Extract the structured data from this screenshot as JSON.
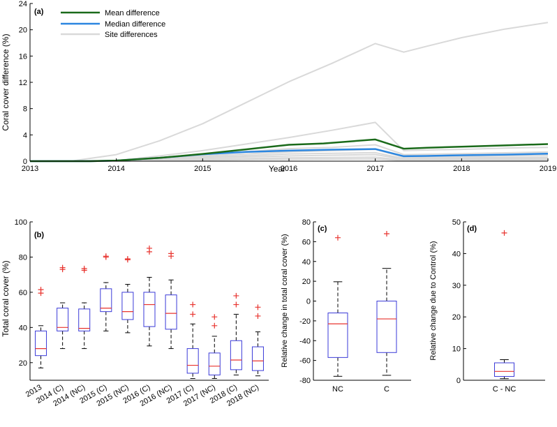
{
  "chart_data": [
    {
      "panel": "(a)",
      "type": "line",
      "xlabel": "Year",
      "ylabel": "Coral cover difference (%)",
      "xlim": [
        2013,
        2019
      ],
      "ylim": [
        0,
        24
      ],
      "xticks": [
        "2013",
        "2014",
        "2015",
        "2016",
        "2017",
        "2018",
        "2019"
      ],
      "yticks": [
        "0",
        "4",
        "8",
        "12",
        "16",
        "20",
        "24"
      ],
      "legend_position": "top-left",
      "legend": [
        "Mean difference",
        "Median difference",
        "Site differences"
      ],
      "colors": {
        "mean": "#1a6a1a",
        "median": "#2b86e0",
        "site": "#d9d9d9"
      },
      "series": [
        {
          "name": "Mean difference",
          "points": [
            [
              2013,
              0
            ],
            [
              2013.7,
              0
            ],
            [
              2014,
              0.1
            ],
            [
              2014.5,
              0.5
            ],
            [
              2015,
              1.1
            ],
            [
              2015.5,
              1.8
            ],
            [
              2016,
              2.5
            ],
            [
              2016.4,
              2.7
            ],
            [
              2017,
              3.3
            ],
            [
              2017.33,
              1.9
            ],
            [
              2017.6,
              2.05
            ],
            [
              2018,
              2.2
            ],
            [
              2018.5,
              2.4
            ],
            [
              2019,
              2.6
            ]
          ]
        },
        {
          "name": "Median difference",
          "points": [
            [
              2013,
              0
            ],
            [
              2013.7,
              0
            ],
            [
              2014,
              0.1
            ],
            [
              2014.5,
              0.5
            ],
            [
              2015,
              1.05
            ],
            [
              2015.5,
              1.4
            ],
            [
              2016,
              1.6
            ],
            [
              2016.5,
              1.75
            ],
            [
              2017,
              1.85
            ],
            [
              2017.33,
              0.75
            ],
            [
              2017.6,
              0.8
            ],
            [
              2018,
              0.9
            ],
            [
              2018.5,
              1.0
            ],
            [
              2019,
              1.15
            ]
          ]
        },
        {
          "name": "Site differences",
          "points": [
            [
              2013,
              0
            ],
            [
              2013.5,
              0.05
            ],
            [
              2014,
              1.0
            ],
            [
              2014.5,
              3.1
            ],
            [
              2015,
              5.7
            ],
            [
              2015.5,
              8.9
            ],
            [
              2016,
              12.1
            ],
            [
              2016.5,
              14.9
            ],
            [
              2017,
              17.9
            ],
            [
              2017.33,
              16.6
            ],
            [
              2017.6,
              17.5
            ],
            [
              2018,
              18.8
            ],
            [
              2018.5,
              20.1
            ],
            [
              2019,
              21.1
            ]
          ]
        },
        {
          "points": [
            [
              2013,
              0
            ],
            [
              2014,
              0.1
            ],
            [
              2014.5,
              0.8
            ],
            [
              2015,
              1.6
            ],
            [
              2015.5,
              2.6
            ],
            [
              2016,
              3.6
            ],
            [
              2016.5,
              4.7
            ],
            [
              2017,
              5.9
            ],
            [
              2017.33,
              1.6
            ],
            [
              2017.6,
              1.7
            ],
            [
              2018,
              1.8
            ],
            [
              2018.5,
              2.0
            ],
            [
              2019,
              2.1
            ]
          ]
        },
        {
          "points": [
            [
              2013,
              0
            ],
            [
              2014,
              0.1
            ],
            [
              2015,
              1.0
            ],
            [
              2016,
              1.9
            ],
            [
              2016.5,
              2.1
            ],
            [
              2017,
              2.5
            ],
            [
              2017.33,
              1.0
            ],
            [
              2018,
              1.15
            ],
            [
              2019,
              1.4
            ]
          ]
        },
        {
          "points": [
            [
              2013,
              0
            ],
            [
              2014,
              0.05
            ],
            [
              2015,
              0.8
            ],
            [
              2016,
              1.4
            ],
            [
              2017,
              1.8
            ],
            [
              2017.33,
              0.6
            ],
            [
              2018,
              0.7
            ],
            [
              2019,
              0.9
            ]
          ]
        },
        {
          "points": [
            [
              2013,
              0
            ],
            [
              2014,
              0.05
            ],
            [
              2015,
              0.6
            ],
            [
              2016,
              1.1
            ],
            [
              2017,
              1.3
            ],
            [
              2017.33,
              0.4
            ],
            [
              2018,
              0.5
            ],
            [
              2019,
              0.6
            ]
          ]
        },
        {
          "points": [
            [
              2013,
              0
            ],
            [
              2014,
              0.04
            ],
            [
              2015,
              0.5
            ],
            [
              2016,
              0.8
            ],
            [
              2017,
              1.0
            ],
            [
              2017.33,
              0.3
            ],
            [
              2018,
              0.35
            ],
            [
              2019,
              0.45
            ]
          ]
        },
        {
          "points": [
            [
              2013,
              0
            ],
            [
              2014,
              0.02
            ],
            [
              2015,
              0.3
            ],
            [
              2016,
              0.5
            ],
            [
              2017,
              0.6
            ],
            [
              2017.33,
              0.15
            ],
            [
              2018,
              0.2
            ],
            [
              2019,
              0.25
            ]
          ]
        },
        {
          "points": [
            [
              2013,
              0
            ],
            [
              2014,
              0.01
            ],
            [
              2015,
              0.15
            ],
            [
              2016,
              0.3
            ],
            [
              2017,
              0.35
            ],
            [
              2017.33,
              0.1
            ],
            [
              2018,
              0.1
            ],
            [
              2019,
              0.12
            ]
          ]
        }
      ]
    },
    {
      "panel": "(b)",
      "type": "box",
      "ylabel": "Total coral cover (%)",
      "ylim": [
        10,
        100
      ],
      "yticks": [
        "20",
        "40",
        "60",
        "80",
        "100"
      ],
      "categories": [
        "2013",
        "2014 (C)",
        "2014 (NC)",
        "2015 (C)",
        "2015 (NC)",
        "2016 (C)",
        "2016 (NC)",
        "2017 (C)",
        "2017 (NC)",
        "2018 (C)",
        "2018 (NC)"
      ],
      "boxes": [
        {
          "whisker_low": 17,
          "q1": 24,
          "median": 28,
          "q3": 38,
          "whisker_high": 41,
          "outliers": [
            59.5,
            61.5
          ]
        },
        {
          "whisker_low": 28,
          "q1": 38,
          "median": 40,
          "q3": 51,
          "whisker_high": 54,
          "outliers": [
            73,
            74
          ]
        },
        {
          "whisker_low": 28,
          "q1": 38,
          "median": 39.5,
          "q3": 50.5,
          "whisker_high": 54,
          "outliers": [
            72.5,
            73.5
          ]
        },
        {
          "whisker_low": 38,
          "q1": 49,
          "median": 51,
          "q3": 62,
          "whisker_high": 65.5,
          "outliers": [
            80,
            80.5
          ]
        },
        {
          "whisker_low": 37,
          "q1": 44.5,
          "median": 49,
          "q3": 60,
          "whisker_high": 64.5,
          "outliers": [
            78.5,
            79
          ]
        },
        {
          "whisker_low": 29.5,
          "q1": 40.5,
          "median": 53,
          "q3": 60,
          "whisker_high": 68.5,
          "outliers": [
            83,
            85
          ]
        },
        {
          "whisker_low": 28,
          "q1": 39,
          "median": 48,
          "q3": 58.5,
          "whisker_high": 67,
          "outliers": [
            80.5,
            82
          ]
        },
        {
          "whisker_low": 11,
          "q1": 14,
          "median": 18.5,
          "q3": 28,
          "whisker_high": 42,
          "outliers": [
            47.5,
            53
          ]
        },
        {
          "whisker_low": 11,
          "q1": 13,
          "median": 18,
          "q3": 25.5,
          "whisker_high": 35,
          "outliers": [
            41,
            46
          ]
        },
        {
          "whisker_low": 13,
          "q1": 16,
          "median": 21.5,
          "q3": 32.5,
          "whisker_high": 47.5,
          "outliers": [
            53,
            58
          ]
        },
        {
          "whisker_low": 12.5,
          "q1": 15.5,
          "median": 21,
          "q3": 29,
          "whisker_high": 37.5,
          "outliers": [
            46.5,
            51.5
          ]
        }
      ]
    },
    {
      "panel": "(c)",
      "type": "box",
      "ylabel": "Relative change in total coral cover (%)",
      "ylim": [
        -80,
        80
      ],
      "yticks": [
        "-80",
        "-60",
        "-40",
        "-20",
        "0",
        "20",
        "40",
        "60",
        "80"
      ],
      "categories": [
        "NC",
        "C"
      ],
      "boxes": [
        {
          "whisker_low": -76,
          "q1": -57,
          "median": -23,
          "q3": -12,
          "whisker_high": 19.5,
          "outliers": [
            64
          ]
        },
        {
          "whisker_low": -75,
          "q1": -52,
          "median": -18,
          "q3": 0,
          "whisker_high": 33,
          "outliers": [
            68
          ]
        }
      ]
    },
    {
      "panel": "(d)",
      "type": "box",
      "ylabel": "Relative change due to Control (%)",
      "ylim": [
        0,
        50
      ],
      "yticks": [
        "0",
        "10",
        "20",
        "30",
        "40",
        "50"
      ],
      "categories": [
        "C - NC"
      ],
      "boxes": [
        {
          "whisker_low": 0.5,
          "q1": 1.2,
          "median": 2.8,
          "q3": 5.5,
          "whisker_high": 6.5,
          "outliers": [
            46.5
          ]
        }
      ]
    }
  ]
}
